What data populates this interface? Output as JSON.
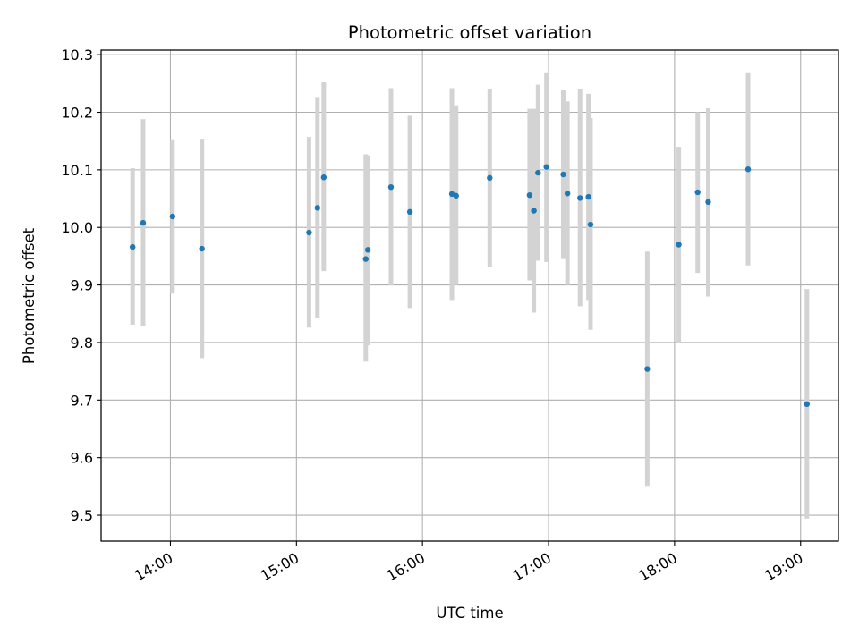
{
  "chart_data": {
    "type": "scatter",
    "title": "Photometric offset variation",
    "xlabel": "UTC time",
    "ylabel": "Photometric offset",
    "xlim": [
      "13:27",
      "19:18"
    ],
    "ylim": [
      9.455,
      10.308
    ],
    "x_ticks": [
      "14:00",
      "15:00",
      "16:00",
      "17:00",
      "18:00",
      "19:00"
    ],
    "y_ticks": [
      9.5,
      9.6,
      9.7,
      9.8,
      9.9,
      10.0,
      10.1,
      10.2,
      10.3
    ],
    "y_tick_labels": [
      "9.5",
      "9.6",
      "9.7",
      "9.8",
      "9.9",
      "10.0",
      "10.1",
      "10.2",
      "10.3"
    ],
    "grid": true,
    "marker_color": "#1f77b4",
    "errorbar_color": "#d3d3d3",
    "points": [
      {
        "x": "13:42",
        "y": 9.966,
        "low": 9.831,
        "high": 10.103
      },
      {
        "x": "13:47",
        "y": 10.008,
        "low": 9.829,
        "high": 10.188
      },
      {
        "x": "14:01",
        "y": 10.019,
        "low": 9.885,
        "high": 10.153
      },
      {
        "x": "14:15",
        "y": 9.963,
        "low": 9.773,
        "high": 10.154
      },
      {
        "x": "15:06",
        "y": 9.991,
        "low": 9.826,
        "high": 10.157
      },
      {
        "x": "15:10",
        "y": 10.034,
        "low": 9.842,
        "high": 10.225
      },
      {
        "x": "15:13",
        "y": 10.087,
        "low": 9.924,
        "high": 10.252
      },
      {
        "x": "15:33",
        "y": 9.945,
        "low": 9.767,
        "high": 10.127
      },
      {
        "x": "15:34",
        "y": 9.961,
        "low": 9.795,
        "high": 10.125
      },
      {
        "x": "15:45",
        "y": 10.07,
        "low": 9.899,
        "high": 10.242
      },
      {
        "x": "15:54",
        "y": 10.027,
        "low": 9.86,
        "high": 10.194
      },
      {
        "x": "16:14",
        "y": 10.058,
        "low": 9.874,
        "high": 10.242
      },
      {
        "x": "16:16",
        "y": 10.055,
        "low": 9.9,
        "high": 10.212
      },
      {
        "x": "16:32",
        "y": 10.086,
        "low": 9.931,
        "high": 10.24
      },
      {
        "x": "16:51",
        "y": 10.056,
        "low": 9.908,
        "high": 10.206
      },
      {
        "x": "16:53",
        "y": 10.029,
        "low": 9.852,
        "high": 10.206
      },
      {
        "x": "16:55",
        "y": 10.095,
        "low": 9.942,
        "high": 10.248
      },
      {
        "x": "16:59",
        "y": 10.105,
        "low": 9.94,
        "high": 10.268
      },
      {
        "x": "17:07",
        "y": 10.092,
        "low": 9.945,
        "high": 10.238
      },
      {
        "x": "17:09",
        "y": 10.059,
        "low": 9.9,
        "high": 10.219
      },
      {
        "x": "17:15",
        "y": 10.051,
        "low": 9.863,
        "high": 10.24
      },
      {
        "x": "17:19",
        "y": 10.053,
        "low": 9.874,
        "high": 10.232
      },
      {
        "x": "17:20",
        "y": 10.005,
        "low": 9.822,
        "high": 10.19
      },
      {
        "x": "17:47",
        "y": 9.754,
        "low": 9.551,
        "high": 9.958
      },
      {
        "x": "18:02",
        "y": 9.97,
        "low": 9.8,
        "high": 10.14
      },
      {
        "x": "18:11",
        "y": 10.061,
        "low": 9.921,
        "high": 10.2
      },
      {
        "x": "18:16",
        "y": 10.044,
        "low": 9.88,
        "high": 10.207
      },
      {
        "x": "18:35",
        "y": 10.101,
        "low": 9.934,
        "high": 10.268
      },
      {
        "x": "19:03",
        "y": 9.693,
        "low": 9.494,
        "high": 9.893
      }
    ]
  }
}
